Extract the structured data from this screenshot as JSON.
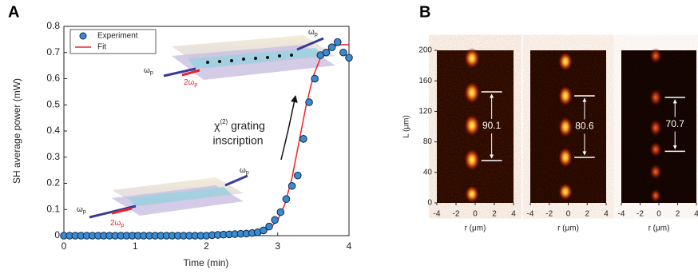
{
  "chart_data": [
    {
      "type": "scatter",
      "panel_label": "A",
      "xlabel": "Time (min)",
      "ylabel": "SH average power (mW)",
      "xlim": [
        0,
        4
      ],
      "xticks": [
        0,
        1,
        2,
        3,
        4
      ],
      "ylim": [
        0,
        0.8
      ],
      "yticks": [
        0,
        0.1,
        0.2,
        0.3,
        0.4,
        0.5,
        0.6,
        0.7,
        0.8
      ],
      "grid": false,
      "legend": "top-left",
      "annotation": {
        "symbol": "χ",
        "superscript": "(2)",
        "text": " grating",
        "line2": "inscription"
      },
      "inset_labels": {
        "omega": "ω",
        "double_omega": "2ω",
        "subscript": "p"
      },
      "series": [
        {
          "name": "Experiment",
          "color": "#3b8bd0",
          "marker": "circle",
          "x": [
            0,
            0.08,
            0.16,
            0.24,
            0.32,
            0.4,
            0.48,
            0.56,
            0.64,
            0.72,
            0.8,
            0.88,
            0.96,
            1.04,
            1.12,
            1.2,
            1.28,
            1.36,
            1.44,
            1.52,
            1.6,
            1.68,
            1.76,
            1.84,
            1.92,
            2,
            2.08,
            2.16,
            2.24,
            2.32,
            2.4,
            2.48,
            2.56,
            2.64,
            2.72,
            2.8,
            2.88,
            2.96,
            3.04,
            3.12,
            3.2,
            3.28,
            3.36,
            3.44,
            3.52,
            3.6,
            3.68,
            3.76,
            3.84,
            3.92,
            4
          ],
          "values": [
            0,
            0,
            0,
            0,
            0,
            0,
            0,
            0,
            0,
            0,
            0,
            0,
            0,
            0,
            0,
            0,
            0,
            0,
            0,
            0,
            0,
            0,
            0,
            0,
            0,
            0,
            0.002,
            0.003,
            0.004,
            0.005,
            0.006,
            0.007,
            0.008,
            0.01,
            0.013,
            0.02,
            0.035,
            0.06,
            0.09,
            0.14,
            0.19,
            0.23,
            0.37,
            0.51,
            0.6,
            0.69,
            0.7,
            0.72,
            0.74,
            0.7,
            0.68
          ]
        },
        {
          "name": "Fit",
          "color": "#e8262b",
          "marker": "line",
          "x": [
            0,
            0.5,
            1,
            1.5,
            2,
            2.5,
            2.7,
            2.8,
            2.9,
            3,
            3.1,
            3.2,
            3.3,
            3.4,
            3.5,
            3.6,
            3.7,
            3.8,
            3.9,
            4
          ],
          "values": [
            0,
            0,
            0,
            0,
            0,
            0.002,
            0.005,
            0.012,
            0.03,
            0.06,
            0.12,
            0.22,
            0.36,
            0.5,
            0.61,
            0.68,
            0.71,
            0.725,
            0.73,
            0.73
          ]
        }
      ]
    },
    {
      "type": "heatmap",
      "panel_label": "B",
      "xlabel": "r (μm)",
      "ylabel": "L (μm)",
      "xlim": [
        -4,
        4
      ],
      "xticks": [
        -4,
        -2,
        0,
        2,
        4
      ],
      "ylim": [
        0,
        200
      ],
      "yticks": [
        0,
        40,
        80,
        120,
        160,
        200
      ],
      "period_label": "90.1",
      "period_markers": [
        145.6,
        55.5
      ]
    },
    {
      "type": "heatmap",
      "xlabel": "r (μm)",
      "xlim": [
        -4,
        4
      ],
      "xticks": [
        -4,
        -2,
        0,
        2,
        4
      ],
      "ylim": [
        0,
        200
      ],
      "period_label": "80.6",
      "period_markers": [
        140.3,
        59.7
      ]
    },
    {
      "type": "heatmap",
      "xlabel": "r (μm)",
      "xlim": [
        -4,
        4
      ],
      "xticks": [
        -4,
        -2,
        0,
        2,
        4
      ],
      "ylim": [
        0,
        200
      ],
      "period_label": "70.7",
      "period_markers": [
        138.4,
        67.7
      ]
    }
  ]
}
